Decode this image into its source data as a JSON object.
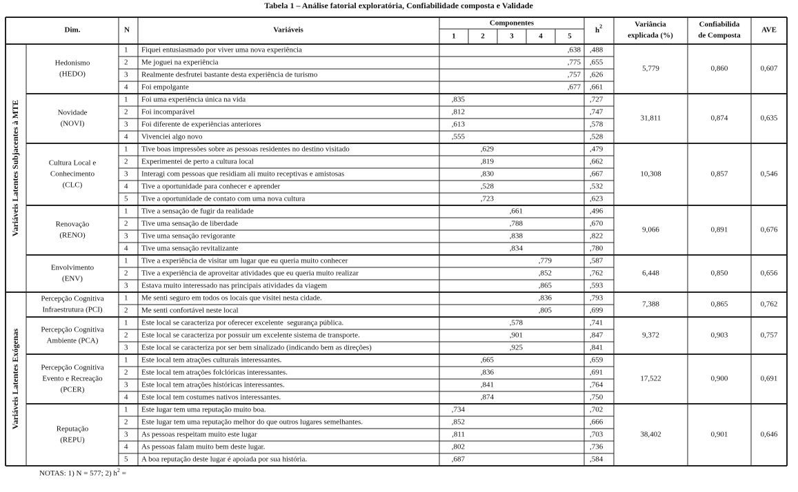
{
  "title": "Tabela 1 – Análise fatorial exploratória, Confiabilidade composta e Validade",
  "header": {
    "dim": "Dim.",
    "n": "N",
    "variables": "Variáveis",
    "components": "Componentes",
    "component_numbers": [
      "1",
      "2",
      "3",
      "4",
      "5"
    ],
    "h2_base": "h",
    "h2_sup": "2",
    "variance_lines": [
      "Variância",
      "explicada (%)"
    ],
    "reliability_lines": [
      "Confiabilida",
      "de Composta"
    ],
    "ave": "AVE"
  },
  "groups": [
    {
      "label": "Variáveis Latentes Subjacentes à MTE",
      "dimensions": [
        {
          "name_lines": [
            "Hedonismo",
            "(HEDO)"
          ],
          "variance": "5,779",
          "reliability": "0,860",
          "ave": "0,607",
          "rows": [
            {
              "n": "1",
              "text": "Fiquei entusiasmado por viver uma nova experiência",
              "loadings": [
                null,
                null,
                null,
                null,
                ",638"
              ],
              "h2": ",488"
            },
            {
              "n": "2",
              "text": "Me joguei na experiência",
              "loadings": [
                null,
                null,
                null,
                null,
                ",775"
              ],
              "h2": ",655"
            },
            {
              "n": "3",
              "text": "Realmente desfrutei bastante desta experiência de turismo",
              "loadings": [
                null,
                null,
                null,
                null,
                ",757"
              ],
              "h2": ",626"
            },
            {
              "n": "4",
              "text": "Foi empolgante",
              "loadings": [
                null,
                null,
                null,
                null,
                ",677"
              ],
              "h2": ",661"
            }
          ]
        },
        {
          "name_lines": [
            "Novidade",
            "(NOVI)"
          ],
          "variance": "31,811",
          "reliability": "0,874",
          "ave": "0,635",
          "rows": [
            {
              "n": "1",
              "text": "Foi uma experiência única na vida",
              "loadings": [
                ",835",
                null,
                null,
                null,
                null
              ],
              "h2": ",727"
            },
            {
              "n": "2",
              "text": "Foi incomparável",
              "loadings": [
                ",812",
                null,
                null,
                null,
                null
              ],
              "h2": ",747"
            },
            {
              "n": "3",
              "text": "Foi diferente de experiências anteriores",
              "loadings": [
                ",613",
                null,
                null,
                null,
                null
              ],
              "h2": ",578"
            },
            {
              "n": "4",
              "text": "Vivenciei algo novo",
              "loadings": [
                ",555",
                null,
                null,
                null,
                null
              ],
              "h2": ",528"
            }
          ]
        },
        {
          "name_lines": [
            "Cultura Local e",
            "Conhecimento",
            "(CLC)"
          ],
          "variance": "10,308",
          "reliability": "0,857",
          "ave": "0,546",
          "rows": [
            {
              "n": "1",
              "text": "Tive boas impressões sobre as pessoas residentes no destino visitado",
              "loadings": [
                null,
                ",629",
                null,
                null,
                null
              ],
              "h2": ",479"
            },
            {
              "n": "2",
              "text": "Experimentei de perto a cultura local",
              "loadings": [
                null,
                ",819",
                null,
                null,
                null
              ],
              "h2": ",662"
            },
            {
              "n": "3",
              "text": "Interagi com pessoas que residiam ali muito receptivas e amistosas",
              "loadings": [
                null,
                ",830",
                null,
                null,
                null
              ],
              "h2": ",667"
            },
            {
              "n": "4",
              "text": "Tive a oportunidade para conhecer e aprender",
              "loadings": [
                null,
                ",528",
                null,
                null,
                null
              ],
              "h2": ",532"
            },
            {
              "n": "5",
              "text": "Tive a oportunidade de contato com uma nova cultura",
              "loadings": [
                null,
                ",723",
                null,
                null,
                null
              ],
              "h2": ",623"
            }
          ]
        },
        {
          "name_lines": [
            "Renovação",
            "(RENO)"
          ],
          "variance": "9,066",
          "reliability": "0,891",
          "ave": "0,676",
          "rows": [
            {
              "n": "1",
              "text": "Tive a sensação de fugir da realidade",
              "loadings": [
                null,
                null,
                ",661",
                null,
                null
              ],
              "h2": ",496"
            },
            {
              "n": "2",
              "text": "Tive uma sensação de liberdade",
              "loadings": [
                null,
                null,
                ",788",
                null,
                null
              ],
              "h2": ",670"
            },
            {
              "n": "3",
              "text": "Tive uma sensação revigorante",
              "loadings": [
                null,
                null,
                ",838",
                null,
                null
              ],
              "h2": ",822"
            },
            {
              "n": "4",
              "text": "Tive uma sensação revitalizante",
              "loadings": [
                null,
                null,
                ",834",
                null,
                null
              ],
              "h2": ",780"
            }
          ]
        },
        {
          "name_lines": [
            "Envolvimento",
            "(ENV)"
          ],
          "variance": "6,448",
          "reliability": "0,850",
          "ave": "0,656",
          "rows": [
            {
              "n": "1",
              "text": "Tive a experiência de visitar um lugar que eu queria muito conhecer",
              "loadings": [
                null,
                null,
                null,
                ",779",
                null
              ],
              "h2": ",587"
            },
            {
              "n": "2",
              "text": "Tive a experiência de aproveitar atividades que eu queria muito realizar",
              "loadings": [
                null,
                null,
                null,
                ",852",
                null
              ],
              "h2": ",762"
            },
            {
              "n": "3",
              "text": "Estava muito interessado nas principais atividades da viagem",
              "loadings": [
                null,
                null,
                null,
                ",865",
                null
              ],
              "h2": ",593"
            }
          ]
        }
      ]
    },
    {
      "label": "Variáveis Latentes Exógenas",
      "dimensions": [
        {
          "name_lines": [
            "Percepção Cognitiva",
            "Infraestrutura (PCI)"
          ],
          "variance": "7,388",
          "reliability": "0,865",
          "ave": "0,762",
          "rows": [
            {
              "n": "1",
              "text": "Me senti seguro em todos os locais que visitei nesta cidade.",
              "loadings": [
                null,
                null,
                null,
                ",836",
                null
              ],
              "h2": ",793"
            },
            {
              "n": "2",
              "text": "Me senti confortável neste local",
              "loadings": [
                null,
                null,
                null,
                ",805",
                null
              ],
              "h2": ",699"
            }
          ]
        },
        {
          "name_lines": [
            "Percepção Cognitiva",
            "Ambiente (PCA)"
          ],
          "variance": "9,372",
          "reliability": "0,903",
          "ave": "0,757",
          "rows": [
            {
              "n": "1",
              "text": "Este local se caracteriza por oferecer excelente  segurança pública.",
              "loadings": [
                null,
                null,
                ",578",
                null,
                null
              ],
              "h2": ",741"
            },
            {
              "n": "2",
              "text": "Este local se caracteriza por possuir um excelente sistema de transporte.",
              "loadings": [
                null,
                null,
                ",901",
                null,
                null
              ],
              "h2": ",847"
            },
            {
              "n": "3",
              "text": "Este local se caracteriza por ser bem sinalizado (indicando bem as direções)",
              "loadings": [
                null,
                null,
                ",925",
                null,
                null
              ],
              "h2": ",841"
            }
          ]
        },
        {
          "name_lines": [
            "Percepção Cognitiva",
            "Evento e Recreação",
            "(PCER)"
          ],
          "variance": "17,522",
          "reliability": "0,900",
          "ave": "0,691",
          "rows": [
            {
              "n": "1",
              "text": "Este local tem atrações culturais interessantes.",
              "loadings": [
                null,
                ",665",
                null,
                null,
                null
              ],
              "h2": ",659"
            },
            {
              "n": "2",
              "text": "Este local tem atrações folclóricas interessantes.",
              "loadings": [
                null,
                ",836",
                null,
                null,
                null
              ],
              "h2": ",691"
            },
            {
              "n": "3",
              "text": "Este local tem atrações históricas interessantes.",
              "loadings": [
                null,
                ",841",
                null,
                null,
                null
              ],
              "h2": ",764"
            },
            {
              "n": "4",
              "text": "Este local tem costumes nativos interessantes.",
              "loadings": [
                null,
                ",874",
                null,
                null,
                null
              ],
              "h2": ",750"
            }
          ]
        },
        {
          "name_lines": [
            "Reputação",
            "(REPU)"
          ],
          "variance": "38,402",
          "reliability": "0,901",
          "ave": "0,646",
          "rows": [
            {
              "n": "1",
              "text": "Este lugar tem uma reputação muito boa.",
              "loadings": [
                ",734",
                null,
                null,
                null,
                null
              ],
              "h2": ",702"
            },
            {
              "n": "2",
              "text": "Este lugar tem uma reputação melhor do que outros lugares semelhantes.",
              "loadings": [
                ",852",
                null,
                null,
                null,
                null
              ],
              "h2": ",666"
            },
            {
              "n": "3",
              "text": "As pessoas respeitam muito este lugar",
              "loadings": [
                ",811",
                null,
                null,
                null,
                null
              ],
              "h2": ",703"
            },
            {
              "n": "4",
              "text": "As pessoas falam muito bem deste lugar.",
              "loadings": [
                ",802",
                null,
                null,
                null,
                null
              ],
              "h2": ",736"
            },
            {
              "n": "5",
              "text": "A boa reputação deste lugar é apoiada por sua história.",
              "loadings": [
                ",687",
                null,
                null,
                null,
                null
              ],
              "h2": ",584"
            }
          ]
        }
      ]
    }
  ],
  "notes": {
    "text": "NOTAS: 1) N = 577; 2) h",
    "sup": "2",
    "tail": " ="
  }
}
